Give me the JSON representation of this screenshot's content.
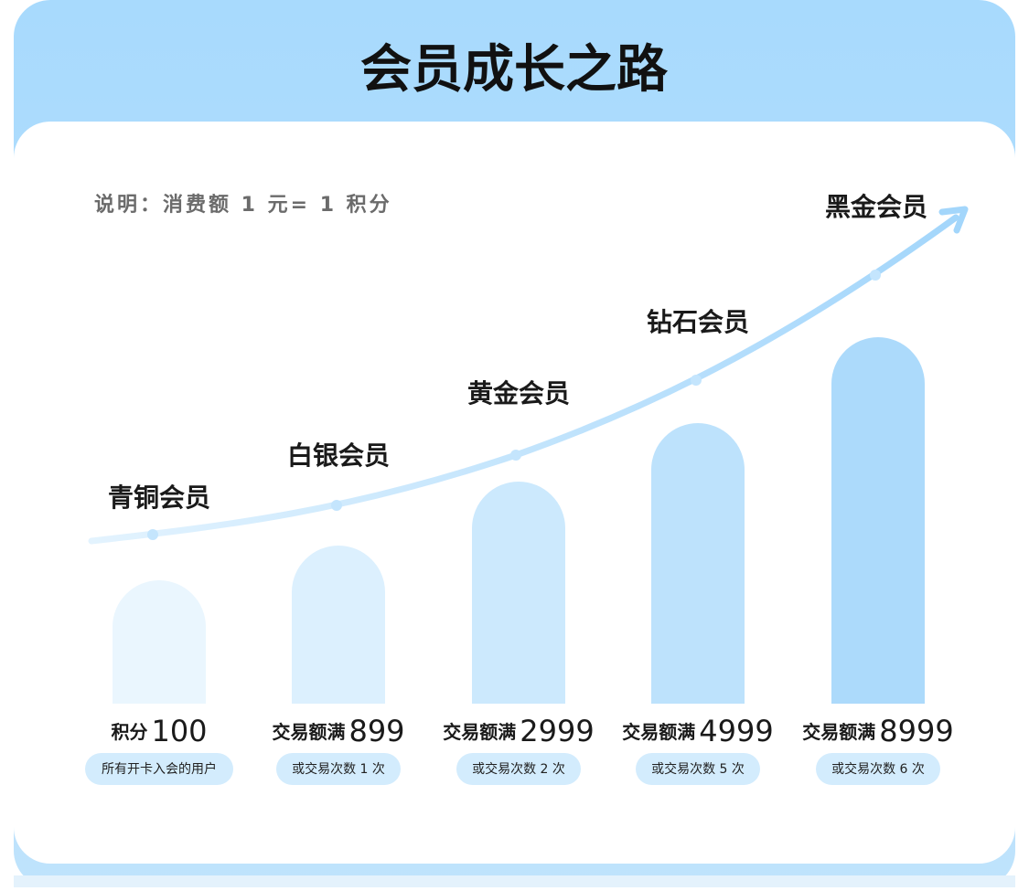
{
  "header": {
    "title": "会员成长之路"
  },
  "note": "说明：消费额 1 元= 1 积分",
  "tiers": [
    {
      "name": "青铜会员",
      "condition": "积分",
      "amount": 100,
      "sub": "所有开卡入会的用户"
    },
    {
      "name": "白银会员",
      "condition": "交易额满",
      "amount": 899,
      "sub": "或交易次数 1 次"
    },
    {
      "name": "黄金会员",
      "condition": "交易额满",
      "amount": 2999,
      "sub": "或交易次数 2 次"
    },
    {
      "name": "钻石会员",
      "condition": "交易额满",
      "amount": 4999,
      "sub": "或交易次数 5 次"
    },
    {
      "name": "黑金会员",
      "condition": "交易额满",
      "amount": 8999,
      "sub": "或交易次数 6 次"
    }
  ]
}
